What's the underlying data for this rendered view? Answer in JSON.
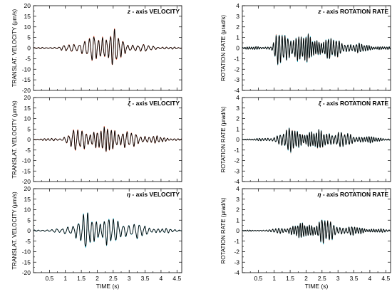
{
  "figure": {
    "xlabel": "TIME (s)",
    "ylabel_velocity": "TRANSLAT. VELOCITY (μm/s)",
    "ylabel_rotation": "ROTATION RATE (μrad/s)",
    "colors": {
      "trace": "#000000",
      "overlay_red": "#e8502a",
      "overlay_cyan": "#29c4e0",
      "axis": "#000000"
    }
  },
  "chart_data": [
    {
      "type": "line",
      "title_symbol": "z",
      "title": " - axis  VELOCITY",
      "ylabel": "TRANSLAT. VELOCITY (μm/s)",
      "xlabel": "",
      "xlim": [
        0,
        4.65
      ],
      "ylim": [
        -20,
        20
      ],
      "xticks": [],
      "yticks": [
        -20,
        -15,
        -10,
        -5,
        0,
        5,
        10,
        15,
        20
      ],
      "series": [
        {
          "color": "#e8502a",
          "envelope": [
            [
              0,
              0.3
            ],
            [
              0.8,
              0.6
            ],
            [
              1.0,
              1.5
            ],
            [
              1.3,
              3
            ],
            [
              1.6,
              4
            ],
            [
              1.9,
              6
            ],
            [
              2.15,
              8
            ],
            [
              2.4,
              10
            ],
            [
              2.55,
              9
            ],
            [
              2.7,
              5
            ],
            [
              2.9,
              3
            ],
            [
              3.3,
              2
            ],
            [
              3.7,
              1.2
            ],
            [
              4.2,
              0.6
            ],
            [
              4.65,
              0.3
            ]
          ],
          "period": 0.145
        },
        {
          "color": "#000000",
          "envelope": [
            [
              0,
              0.3
            ],
            [
              0.8,
              0.6
            ],
            [
              1.0,
              1.5
            ],
            [
              1.3,
              3
            ],
            [
              1.6,
              4
            ],
            [
              1.9,
              6
            ],
            [
              2.15,
              8
            ],
            [
              2.4,
              10
            ],
            [
              2.55,
              9
            ],
            [
              2.7,
              5
            ],
            [
              2.9,
              3
            ],
            [
              3.3,
              2
            ],
            [
              3.7,
              1.2
            ],
            [
              4.2,
              0.6
            ],
            [
              4.65,
              0.3
            ]
          ],
          "period": 0.145
        }
      ]
    },
    {
      "type": "line",
      "title_symbol": "z",
      "title": " - axis  ROTATION  RATE",
      "ylabel": "ROTATION RATE (μrad/s)",
      "xlabel": "",
      "xlim": [
        0,
        4.65
      ],
      "ylim": [
        -4,
        4
      ],
      "xticks": [],
      "yticks": [
        -4,
        -3,
        -2,
        -1,
        0,
        1,
        2,
        3,
        4
      ],
      "series": [
        {
          "color": "#e8502a",
          "envelope": [
            [
              0,
              0.1
            ],
            [
              0.9,
              0.2
            ],
            [
              1.05,
              1.2
            ],
            [
              1.2,
              1.6
            ],
            [
              1.5,
              1.5
            ],
            [
              1.65,
              1.8
            ],
            [
              1.9,
              1.3
            ],
            [
              2.3,
              1.1
            ],
            [
              2.6,
              1.2
            ],
            [
              3.0,
              0.8
            ],
            [
              3.5,
              0.5
            ],
            [
              4.0,
              0.3
            ],
            [
              4.65,
              0.1
            ]
          ],
          "period": 0.08
        },
        {
          "color": "#29c4e0",
          "envelope": [
            [
              0,
              0.1
            ],
            [
              0.9,
              0.2
            ],
            [
              1.05,
              1.2
            ],
            [
              1.2,
              1.6
            ],
            [
              1.5,
              1.5
            ],
            [
              1.65,
              1.8
            ],
            [
              1.9,
              1.3
            ],
            [
              2.3,
              1.1
            ],
            [
              2.6,
              1.2
            ],
            [
              3.0,
              0.8
            ],
            [
              3.5,
              0.5
            ],
            [
              4.0,
              0.3
            ],
            [
              4.65,
              0.1
            ]
          ],
          "period": 0.08
        },
        {
          "color": "#000000",
          "envelope": [
            [
              0,
              0.1
            ],
            [
              0.9,
              0.2
            ],
            [
              1.05,
              1.2
            ],
            [
              1.2,
              1.6
            ],
            [
              1.5,
              1.5
            ],
            [
              1.65,
              1.8
            ],
            [
              1.9,
              1.3
            ],
            [
              2.3,
              1.1
            ],
            [
              2.6,
              1.2
            ],
            [
              3.0,
              0.8
            ],
            [
              3.5,
              0.5
            ],
            [
              4.0,
              0.3
            ],
            [
              4.65,
              0.1
            ]
          ],
          "period": 0.08
        }
      ]
    },
    {
      "type": "line",
      "title_symbol": "ξ",
      "title": " - axis  VELOCITY",
      "ylabel": "TRANSLAT. VELOCITY (μm/s)",
      "xlabel": "",
      "xlim": [
        0,
        4.65
      ],
      "ylim": [
        -20,
        20
      ],
      "xticks": [],
      "yticks": [
        -20,
        -15,
        -10,
        -5,
        0,
        5,
        10,
        15,
        20
      ],
      "series": [
        {
          "color": "#e8502a",
          "envelope": [
            [
              0,
              0.3
            ],
            [
              0.9,
              0.8
            ],
            [
              1.05,
              3
            ],
            [
              1.3,
              5
            ],
            [
              1.6,
              6
            ],
            [
              1.9,
              5
            ],
            [
              2.2,
              5
            ],
            [
              2.45,
              9
            ],
            [
              2.6,
              6
            ],
            [
              2.9,
              4
            ],
            [
              3.3,
              3
            ],
            [
              3.7,
              2
            ],
            [
              4.2,
              1
            ],
            [
              4.65,
              0.4
            ]
          ],
          "period": 0.125
        },
        {
          "color": "#000000",
          "envelope": [
            [
              0,
              0.3
            ],
            [
              0.9,
              0.8
            ],
            [
              1.05,
              3
            ],
            [
              1.3,
              5
            ],
            [
              1.6,
              6
            ],
            [
              1.9,
              5
            ],
            [
              2.2,
              5
            ],
            [
              2.45,
              9
            ],
            [
              2.6,
              6
            ],
            [
              2.9,
              4
            ],
            [
              3.3,
              3
            ],
            [
              3.7,
              2
            ],
            [
              4.2,
              1
            ],
            [
              4.65,
              0.4
            ]
          ],
          "period": 0.125
        }
      ]
    },
    {
      "type": "line",
      "title_symbol": "ξ",
      "title": " - axis  ROTATION  RATE",
      "ylabel": "ROTATION RATE (μrad/s)",
      "xlabel": "",
      "xlim": [
        0,
        4.65
      ],
      "ylim": [
        -4,
        4
      ],
      "xticks": [],
      "yticks": [
        -4,
        -3,
        -2,
        -1,
        0,
        1,
        2,
        3,
        4
      ],
      "series": [
        {
          "color": "#e8502a",
          "envelope": [
            [
              0,
              0.08
            ],
            [
              0.9,
              0.15
            ],
            [
              1.05,
              0.6
            ],
            [
              1.3,
              0.9
            ],
            [
              1.6,
              1.2
            ],
            [
              1.9,
              1.0
            ],
            [
              2.3,
              0.8
            ],
            [
              2.6,
              1.0
            ],
            [
              3.0,
              0.8
            ],
            [
              3.5,
              0.5
            ],
            [
              4.0,
              0.3
            ],
            [
              4.65,
              0.1
            ]
          ],
          "period": 0.085
        },
        {
          "color": "#29c4e0",
          "envelope": [
            [
              0,
              0.08
            ],
            [
              0.9,
              0.15
            ],
            [
              1.05,
              0.6
            ],
            [
              1.3,
              0.9
            ],
            [
              1.6,
              1.2
            ],
            [
              1.9,
              1.0
            ],
            [
              2.3,
              0.8
            ],
            [
              2.6,
              1.0
            ],
            [
              3.0,
              0.8
            ],
            [
              3.5,
              0.5
            ],
            [
              4.0,
              0.3
            ],
            [
              4.65,
              0.1
            ]
          ],
          "period": 0.085
        },
        {
          "color": "#000000",
          "envelope": [
            [
              0,
              0.08
            ],
            [
              0.9,
              0.15
            ],
            [
              1.05,
              0.6
            ],
            [
              1.3,
              0.9
            ],
            [
              1.6,
              1.2
            ],
            [
              1.9,
              1.0
            ],
            [
              2.3,
              0.8
            ],
            [
              2.6,
              1.0
            ],
            [
              3.0,
              0.8
            ],
            [
              3.5,
              0.5
            ],
            [
              4.0,
              0.3
            ],
            [
              4.65,
              0.1
            ]
          ],
          "period": 0.085
        }
      ]
    },
    {
      "type": "line",
      "title_symbol": "η",
      "title": " - axis  VELOCITY",
      "ylabel": "TRANSLAT. VELOCITY (μm/s)",
      "xlabel": "TIME (s)",
      "xlim": [
        0,
        4.65
      ],
      "ylim": [
        -20,
        20
      ],
      "xticks": [
        0.5,
        1,
        1.5,
        2,
        2.5,
        3,
        3.5,
        4,
        4.5
      ],
      "yticks": [
        -20,
        -15,
        -10,
        -5,
        0,
        5,
        10,
        15,
        20
      ],
      "series": [
        {
          "color": "#29c4e0",
          "envelope": [
            [
              0,
              0.3
            ],
            [
              0.9,
              1
            ],
            [
              1.1,
              3
            ],
            [
              1.4,
              6
            ],
            [
              1.6,
              9
            ],
            [
              1.75,
              8
            ],
            [
              2.0,
              7
            ],
            [
              2.3,
              8
            ],
            [
              2.6,
              5
            ],
            [
              2.9,
              5
            ],
            [
              3.2,
              4
            ],
            [
              3.6,
              2
            ],
            [
              4.2,
              1
            ],
            [
              4.65,
              0.4
            ]
          ],
          "period": 0.15
        },
        {
          "color": "#000000",
          "envelope": [
            [
              0,
              0.3
            ],
            [
              0.9,
              1
            ],
            [
              1.1,
              3
            ],
            [
              1.4,
              6
            ],
            [
              1.6,
              9
            ],
            [
              1.75,
              8
            ],
            [
              2.0,
              7
            ],
            [
              2.3,
              8
            ],
            [
              2.6,
              5
            ],
            [
              2.9,
              5
            ],
            [
              3.2,
              4
            ],
            [
              3.6,
              2
            ],
            [
              4.2,
              1
            ],
            [
              4.65,
              0.4
            ]
          ],
          "period": 0.15
        }
      ]
    },
    {
      "type": "line",
      "title_symbol": "η",
      "title": " - axis  ROTATION  RATE",
      "ylabel": "ROTATION RATE (μrad/s)",
      "xlabel": "TIME (s)",
      "xlim": [
        0,
        4.65
      ],
      "ylim": [
        -4,
        4
      ],
      "xticks": [
        0.5,
        1,
        1.5,
        2,
        2.5,
        3,
        3.5,
        4,
        4.5
      ],
      "yticks": [
        -4,
        -3,
        -2,
        -1,
        0,
        1,
        2,
        3,
        4
      ],
      "series": [
        {
          "color": "#e8502a",
          "envelope": [
            [
              0,
              0.05
            ],
            [
              0.9,
              0.1
            ],
            [
              1.1,
              0.3
            ],
            [
              1.4,
              0.4
            ],
            [
              1.6,
              0.6
            ],
            [
              1.9,
              0.7
            ],
            [
              2.3,
              0.9
            ],
            [
              2.5,
              1.4
            ],
            [
              2.7,
              1.0
            ],
            [
              3.0,
              0.6
            ],
            [
              3.5,
              0.4
            ],
            [
              4.0,
              0.25
            ],
            [
              4.65,
              0.1
            ]
          ],
          "period": 0.085
        },
        {
          "color": "#29c4e0",
          "envelope": [
            [
              0,
              0.05
            ],
            [
              0.9,
              0.1
            ],
            [
              1.1,
              0.3
            ],
            [
              1.4,
              0.4
            ],
            [
              1.6,
              0.6
            ],
            [
              1.9,
              0.7
            ],
            [
              2.3,
              0.9
            ],
            [
              2.5,
              1.4
            ],
            [
              2.7,
              1.0
            ],
            [
              3.0,
              0.6
            ],
            [
              3.5,
              0.4
            ],
            [
              4.0,
              0.25
            ],
            [
              4.65,
              0.1
            ]
          ],
          "period": 0.085
        },
        {
          "color": "#000000",
          "envelope": [
            [
              0,
              0.05
            ],
            [
              0.9,
              0.1
            ],
            [
              1.1,
              0.3
            ],
            [
              1.4,
              0.4
            ],
            [
              1.6,
              0.6
            ],
            [
              1.9,
              0.7
            ],
            [
              2.3,
              0.9
            ],
            [
              2.5,
              1.4
            ],
            [
              2.7,
              1.0
            ],
            [
              3.0,
              0.6
            ],
            [
              3.5,
              0.4
            ],
            [
              4.0,
              0.25
            ],
            [
              4.65,
              0.1
            ]
          ],
          "period": 0.085
        }
      ]
    }
  ]
}
